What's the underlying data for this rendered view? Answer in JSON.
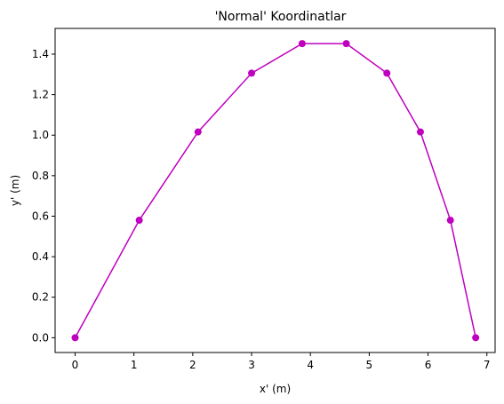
{
  "chart_data": {
    "type": "line",
    "title": "'Normal' Koordinatlar",
    "xlabel": "x' (m)",
    "ylabel": "y' (m)",
    "xlim": [
      -0.34,
      7.14
    ],
    "ylim": [
      -0.073,
      1.527
    ],
    "xticks": [
      0,
      1,
      2,
      3,
      4,
      5,
      6,
      7
    ],
    "xtick_labels": [
      "0",
      "1",
      "2",
      "3",
      "4",
      "5",
      "6",
      "7"
    ],
    "yticks": [
      0.0,
      0.2,
      0.4,
      0.6,
      0.8,
      1.0,
      1.2,
      1.4
    ],
    "ytick_labels": [
      "0.0",
      "0.2",
      "0.4",
      "0.6",
      "0.8",
      "1.0",
      "1.2",
      "1.4"
    ],
    "grid": false,
    "series": [
      {
        "color": "#bf00bf",
        "marker": "circle",
        "x": [
          0.0,
          1.09,
          2.09,
          3.0,
          3.86,
          4.61,
          5.3,
          5.87,
          6.38,
          6.81
        ],
        "y": [
          0.0,
          0.58,
          1.016,
          1.306,
          1.452,
          1.452,
          1.306,
          1.016,
          0.58,
          0.0
        ]
      }
    ]
  }
}
